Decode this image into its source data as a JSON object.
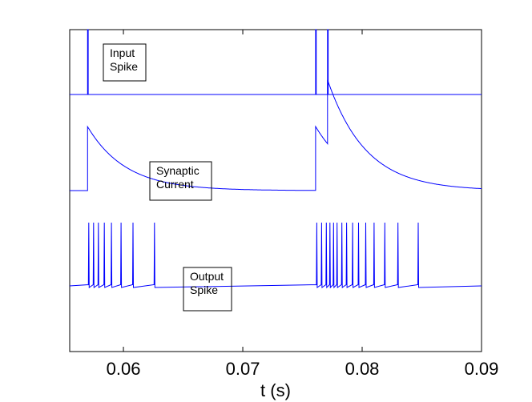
{
  "chart_data": {
    "type": "line",
    "title": "",
    "xlabel": "t (s)",
    "ylabel": "",
    "xlim": [
      0.0555,
      0.09
    ],
    "xticks": [
      0.06,
      0.07,
      0.08,
      0.09
    ],
    "xtick_labels": [
      "0.06",
      "0.07",
      "0.08",
      "0.09"
    ],
    "grid": false,
    "line_color": "#0000ff",
    "series": [
      {
        "name": "Input Spike",
        "label_lines": [
          "Input",
          "Spike"
        ],
        "spike_times": [
          0.057,
          0.0761,
          0.0771
        ]
      },
      {
        "name": "Synaptic Current",
        "label_lines": [
          "Synaptic",
          "Current"
        ],
        "jump_times": [
          0.057,
          0.0761,
          0.0771
        ],
        "jump_size": 0.42,
        "tau": 0.0032
      },
      {
        "name": "Output Spike",
        "label_lines": [
          "Output",
          "Spike"
        ],
        "spike_times": [
          0.0571,
          0.0575,
          0.0579,
          0.0584,
          0.059,
          0.0598,
          0.0608,
          0.0626,
          0.0762,
          0.0766,
          0.077,
          0.0773,
          0.0776,
          0.0779,
          0.0783,
          0.0787,
          0.0792,
          0.0797,
          0.0803,
          0.081,
          0.0819,
          0.083,
          0.0847
        ]
      }
    ]
  }
}
